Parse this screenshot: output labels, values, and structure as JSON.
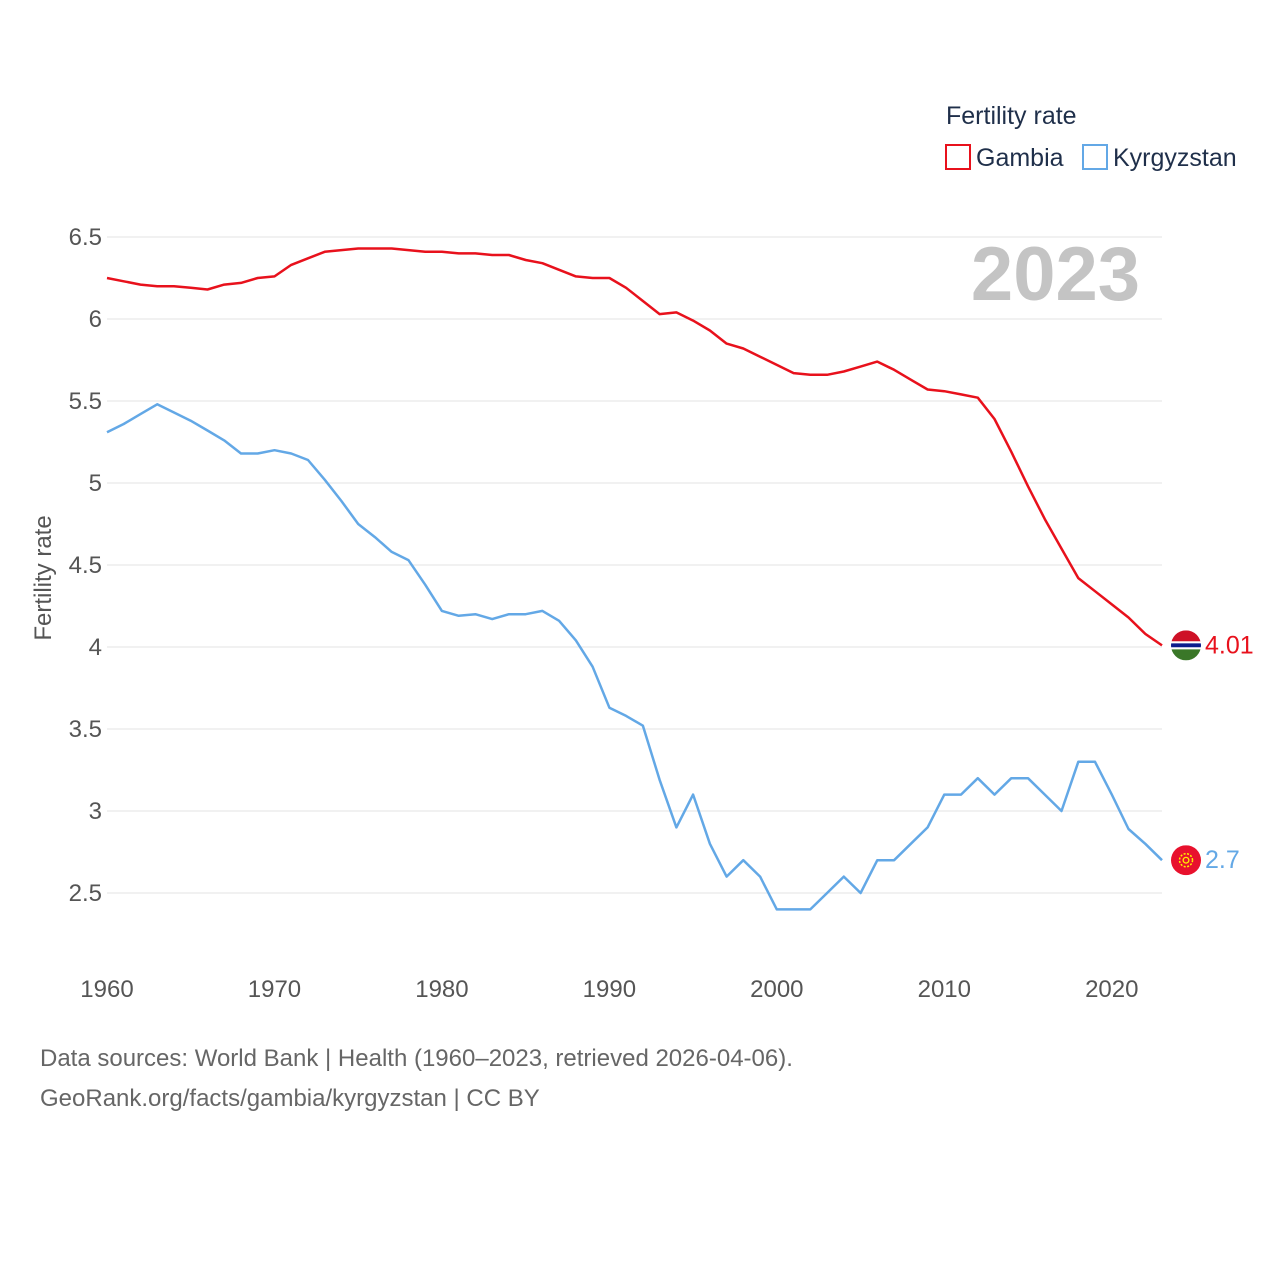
{
  "chart_data": {
    "type": "line",
    "title": "",
    "watermark_year": "2023",
    "xlabel": "",
    "ylabel": "Fertility rate",
    "xlim": [
      1960,
      2023
    ],
    "ylim": [
      2.2,
      6.5
    ],
    "grid": true,
    "x_ticks": [
      {
        "value": 1960,
        "label": "1960"
      },
      {
        "value": 1970,
        "label": "1970"
      },
      {
        "value": 1980,
        "label": "1980"
      },
      {
        "value": 1990,
        "label": "1990"
      },
      {
        "value": 2000,
        "label": "2000"
      },
      {
        "value": 2010,
        "label": "2010"
      },
      {
        "value": 2020,
        "label": "2020"
      }
    ],
    "y_ticks": [
      {
        "value": 2.5,
        "label": "2.5"
      },
      {
        "value": 3,
        "label": "3"
      },
      {
        "value": 3.5,
        "label": "3.5"
      },
      {
        "value": 4,
        "label": "4"
      },
      {
        "value": 4.5,
        "label": "4.5"
      },
      {
        "value": 5,
        "label": "5"
      },
      {
        "value": 5.5,
        "label": "5.5"
      },
      {
        "value": 6,
        "label": "6"
      },
      {
        "value": 6.5,
        "label": "6.5"
      }
    ],
    "legend": {
      "title": "Fertility rate",
      "position": "top-right"
    },
    "x": [
      1960,
      1961,
      1962,
      1963,
      1964,
      1965,
      1966,
      1967,
      1968,
      1969,
      1970,
      1971,
      1972,
      1973,
      1974,
      1975,
      1976,
      1977,
      1978,
      1979,
      1980,
      1981,
      1982,
      1983,
      1984,
      1985,
      1986,
      1987,
      1988,
      1989,
      1990,
      1991,
      1992,
      1993,
      1994,
      1995,
      1996,
      1997,
      1998,
      1999,
      2000,
      2001,
      2002,
      2003,
      2004,
      2005,
      2006,
      2007,
      2008,
      2009,
      2010,
      2011,
      2012,
      2013,
      2014,
      2015,
      2016,
      2017,
      2018,
      2019,
      2020,
      2021,
      2022,
      2023
    ],
    "series": [
      {
        "name": "Gambia",
        "color": "#e8111c",
        "end_label": "4.01",
        "flag": "gambia-flag",
        "values": [
          6.25,
          6.23,
          6.21,
          6.2,
          6.2,
          6.19,
          6.18,
          6.21,
          6.22,
          6.25,
          6.26,
          6.33,
          6.37,
          6.41,
          6.42,
          6.43,
          6.43,
          6.43,
          6.42,
          6.41,
          6.41,
          6.4,
          6.4,
          6.39,
          6.39,
          6.36,
          6.34,
          6.3,
          6.26,
          6.25,
          6.25,
          6.19,
          6.11,
          6.03,
          6.04,
          5.99,
          5.93,
          5.85,
          5.82,
          5.77,
          5.72,
          5.67,
          5.66,
          5.66,
          5.68,
          5.71,
          5.74,
          5.69,
          5.63,
          5.57,
          5.56,
          5.54,
          5.52,
          5.39,
          5.19,
          4.98,
          4.78,
          4.6,
          4.42,
          4.34,
          4.26,
          4.18,
          4.08,
          4.01
        ]
      },
      {
        "name": "Kyrgyzstan",
        "color": "#63a8e6",
        "end_label": "2.7",
        "flag": "kyrgyzstan-flag",
        "values": [
          5.31,
          5.36,
          5.42,
          5.48,
          5.43,
          5.38,
          5.32,
          5.26,
          5.18,
          5.18,
          5.2,
          5.18,
          5.14,
          5.02,
          4.89,
          4.75,
          4.67,
          4.58,
          4.53,
          4.38,
          4.22,
          4.19,
          4.2,
          4.17,
          4.2,
          4.2,
          4.22,
          4.16,
          4.04,
          3.88,
          3.63,
          3.58,
          3.52,
          3.19,
          2.9,
          3.1,
          2.8,
          2.6,
          2.7,
          2.6,
          2.4,
          2.4,
          2.4,
          2.5,
          2.6,
          2.5,
          2.7,
          2.7,
          2.8,
          2.9,
          3.1,
          3.1,
          3.2,
          3.1,
          3.2,
          3.2,
          3.1,
          3.0,
          3.3,
          3.3,
          3.1,
          2.89,
          2.8,
          2.7
        ]
      }
    ]
  },
  "footer": {
    "source_line": "Data sources: World Bank | Health (1960–2023, retrieved 2026-04-06).",
    "credit_line": "GeoRank.org/facts/gambia/kyrgyzstan | CC BY"
  }
}
